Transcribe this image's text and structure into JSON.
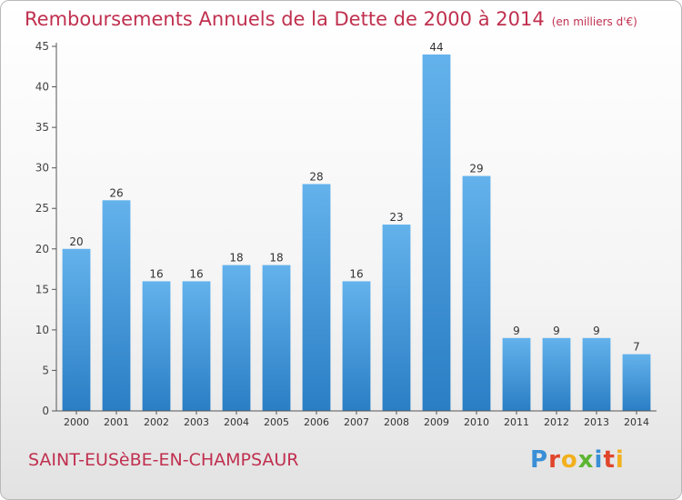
{
  "header": {
    "title": "Remboursements Annuels de la Dette de 2000 à 2014",
    "unit": "(en milliers d'€)"
  },
  "footer": {
    "commune": "SAINT-EUSèBE-EN-CHAMPSAUR",
    "brand": "Proxiti"
  },
  "colors": {
    "title": "#c0304f",
    "bar_top": "#63b2ec",
    "bar_bottom": "#2a7ec4",
    "axis": "#555555",
    "grid": "#d8d8d8"
  },
  "chart_data": {
    "type": "bar",
    "title": "Remboursements Annuels de la Dette de 2000 à 2014",
    "xlabel": "",
    "ylabel": "",
    "categories": [
      "2000",
      "2001",
      "2002",
      "2003",
      "2004",
      "2005",
      "2006",
      "2007",
      "2008",
      "2009",
      "2010",
      "2011",
      "2012",
      "2013",
      "2014"
    ],
    "values": [
      20,
      26,
      16,
      16,
      18,
      18,
      28,
      16,
      23,
      44,
      29,
      9,
      9,
      9,
      7
    ],
    "data_labels": [
      "20",
      "26",
      "16",
      "16",
      "18",
      "18",
      "28",
      "16",
      "23",
      "44",
      "29",
      "9",
      "9",
      "9",
      "7"
    ],
    "ylim": [
      0,
      45
    ],
    "yticks": [
      0,
      5,
      10,
      15,
      20,
      25,
      30,
      35,
      40,
      45
    ],
    "grid": false,
    "legend": "none"
  }
}
